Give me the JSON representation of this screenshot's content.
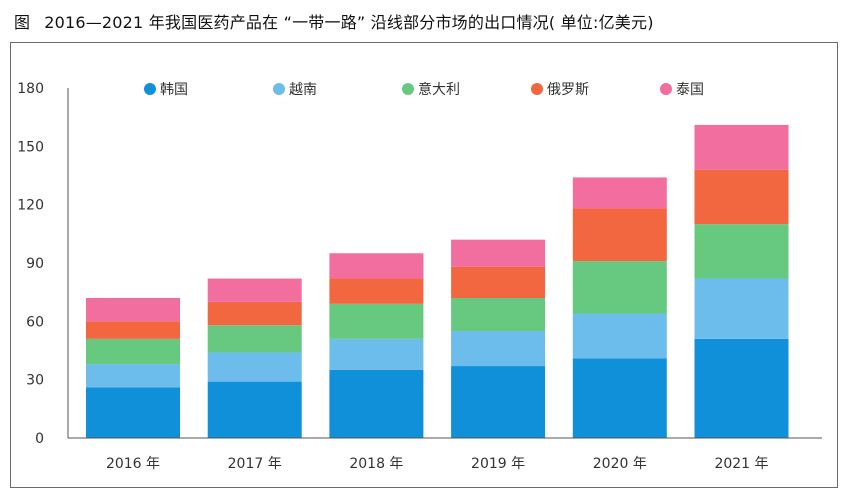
{
  "title": {
    "fig_label": "图",
    "text": "2016—2021 年我国医药产品在 “一带一路” 沿线部分市场的出口情况( 单位:亿美元)"
  },
  "chart_data": {
    "type": "bar",
    "stacked": true,
    "categories": [
      "2016 年",
      "2017 年",
      "2018 年",
      "2019 年",
      "2020 年",
      "2021 年"
    ],
    "series": [
      {
        "name": "韩国",
        "color": "#1090d9",
        "values": [
          26,
          29,
          35,
          37,
          41,
          51
        ]
      },
      {
        "name": "越南",
        "color": "#6cbcec",
        "values": [
          12,
          15,
          16,
          18,
          23,
          31
        ]
      },
      {
        "name": "意大利",
        "color": "#66c97f",
        "values": [
          13,
          14,
          18,
          17,
          27,
          28
        ]
      },
      {
        "name": "俄罗斯",
        "color": "#f26640",
        "values": [
          9,
          12,
          13,
          16,
          27,
          28
        ]
      },
      {
        "name": "泰国",
        "color": "#f16e9e",
        "values": [
          12,
          12,
          13,
          14,
          16,
          23
        ]
      }
    ],
    "y_ticks": [
      "0",
      "30",
      "60",
      "90",
      "120",
      "150",
      "180"
    ],
    "ylim": [
      0,
      180
    ],
    "grid": false,
    "legend_position": "top"
  }
}
